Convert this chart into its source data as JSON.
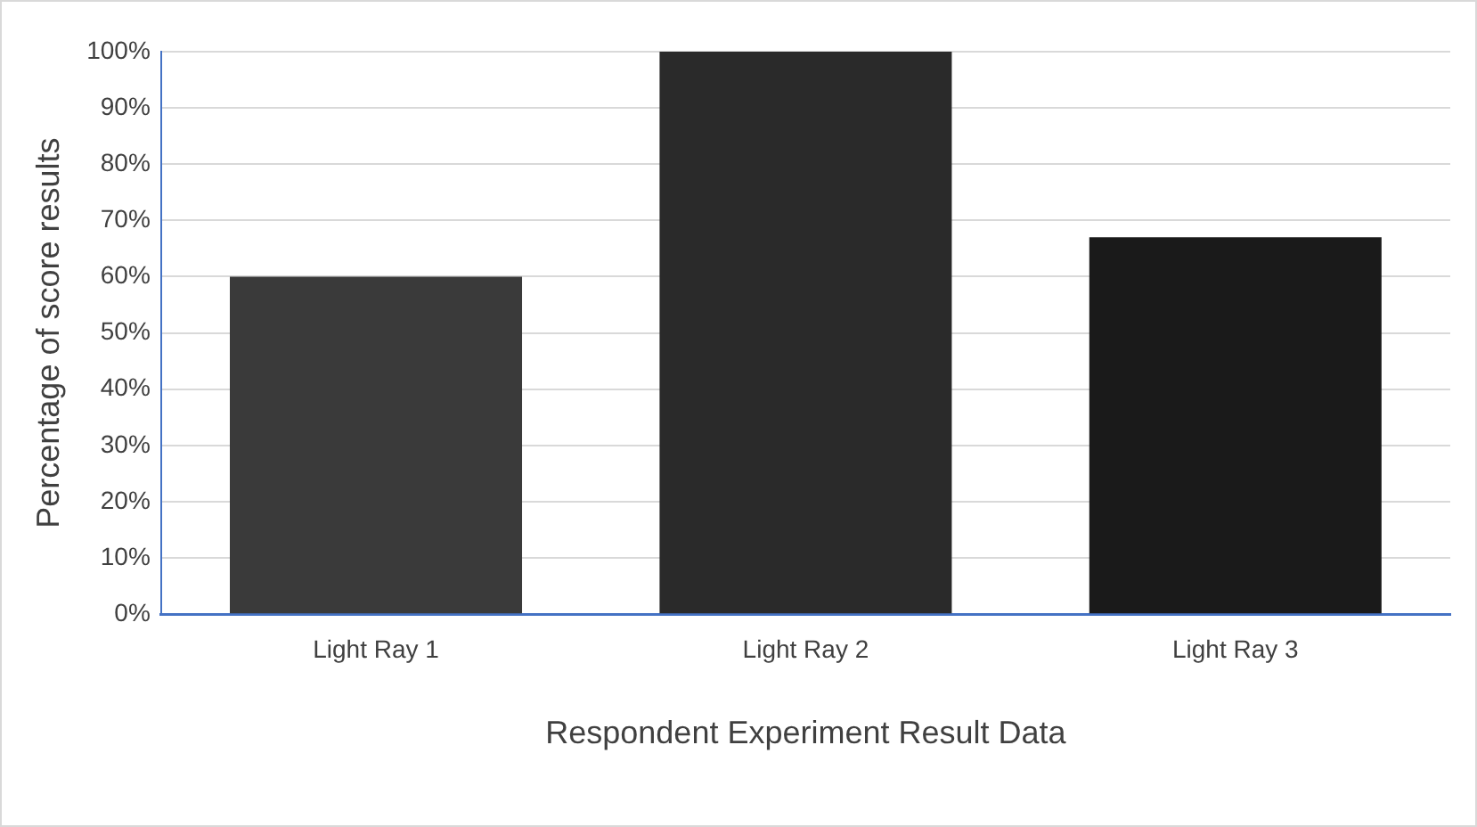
{
  "chart_data": {
    "type": "bar",
    "xlabel": "Respondent Experiment Result Data",
    "ylabel": "Percentage of score results",
    "categories": [
      "Light Ray 1",
      "Light Ray 2",
      "Light Ray 3"
    ],
    "values": [
      60,
      100,
      67
    ],
    "colors": [
      "#3a3a3a",
      "#2a2a2a",
      "#1a1a1a"
    ],
    "ylim": [
      0,
      100
    ],
    "yticks": [
      {
        "value": 0,
        "label": "0%"
      },
      {
        "value": 10,
        "label": "10%"
      },
      {
        "value": 20,
        "label": "20%"
      },
      {
        "value": 30,
        "label": "30%"
      },
      {
        "value": 40,
        "label": "40%"
      },
      {
        "value": 50,
        "label": "50%"
      },
      {
        "value": 60,
        "label": "60%"
      },
      {
        "value": 70,
        "label": "70%"
      },
      {
        "value": 80,
        "label": "80%"
      },
      {
        "value": 90,
        "label": "90%"
      },
      {
        "value": 100,
        "label": "100%"
      }
    ],
    "grid": "y",
    "legend": false
  }
}
